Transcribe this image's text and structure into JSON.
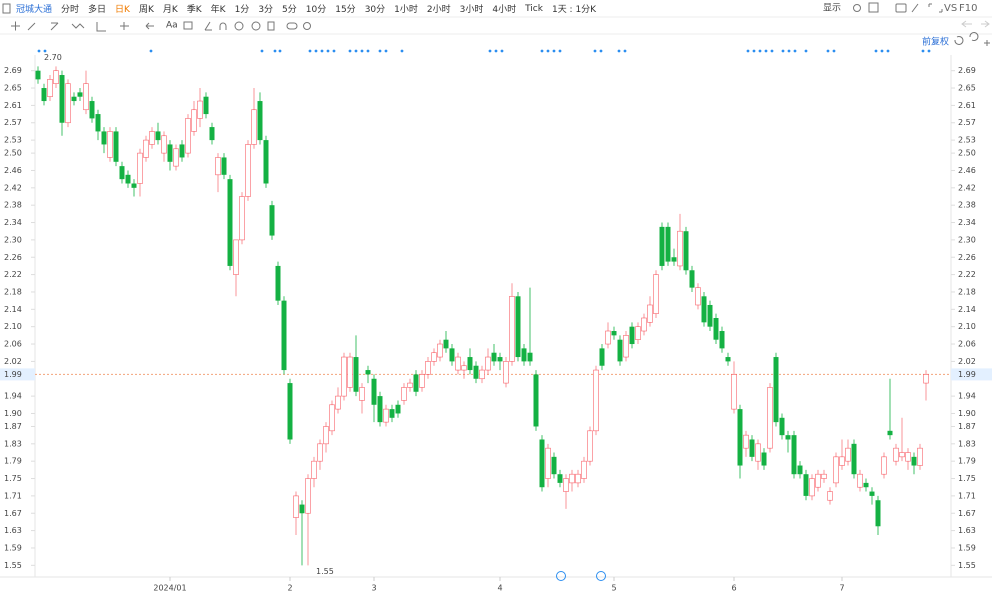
{
  "toolbar": {
    "stock": "冠城大通",
    "periods": [
      "分时",
      "多日",
      "日K",
      "周K",
      "月K",
      "季K",
      "年K",
      "1分",
      "3分",
      "5分",
      "10分",
      "15分",
      "30分",
      "1小时",
      "2小时",
      "3小时",
      "4小时",
      "Tick",
      "1天 : 1分K"
    ],
    "active": "日K",
    "display": "显示",
    "vs": "VS",
    "f10": "F10",
    "font": "Aa",
    "adjust": "前复权"
  },
  "chart_data": {
    "type": "candlestick",
    "up_color": "#f5222d",
    "down_color": "#14b143",
    "ylim": [
      1.53,
      2.71
    ],
    "yticks": [
      2.69,
      2.65,
      2.61,
      2.57,
      2.53,
      {
        "value": 2.5,
        "label": "2.50"
      },
      2.46,
      2.42,
      2.38,
      2.34,
      {
        "value": 2.3,
        "label": "2.30"
      },
      2.26,
      2.22,
      2.18,
      2.14,
      {
        "value": 2.1,
        "label": "2.10"
      },
      2.06,
      2.02,
      1.94,
      {
        "value": 1.9,
        "label": "1.90"
      },
      1.87,
      1.83,
      1.79,
      1.75,
      1.71,
      1.67,
      1.63,
      1.59,
      1.55
    ],
    "last_price": 1.99,
    "high_label": "2.70",
    "low_label": "1.55",
    "xticks": [
      {
        "value": 22,
        "label": "2024/01"
      },
      {
        "value": 42,
        "label": "2"
      },
      {
        "value": 56,
        "label": "3"
      },
      {
        "value": 77,
        "label": "4"
      },
      {
        "value": 96,
        "label": "5"
      },
      {
        "value": 116,
        "label": "6"
      },
      {
        "value": 134,
        "label": "7"
      }
    ],
    "ohlc": [
      [
        2.69,
        2.7,
        2.66,
        2.67
      ],
      [
        2.65,
        2.66,
        2.61,
        2.62
      ],
      [
        2.63,
        2.68,
        2.62,
        2.67
      ],
      [
        2.66,
        2.7,
        2.65,
        2.69
      ],
      [
        2.68,
        2.69,
        2.54,
        2.57
      ],
      [
        2.57,
        2.67,
        2.56,
        2.66
      ],
      [
        2.63,
        2.64,
        2.61,
        2.62
      ],
      [
        2.64,
        2.65,
        2.62,
        2.63
      ],
      [
        2.6,
        2.69,
        2.59,
        2.66
      ],
      [
        2.62,
        2.63,
        2.57,
        2.58
      ],
      [
        2.59,
        2.6,
        2.53,
        2.55
      ],
      [
        2.55,
        2.56,
        2.5,
        2.52
      ],
      [
        2.49,
        2.56,
        2.48,
        2.55
      ],
      [
        2.55,
        2.56,
        2.47,
        2.48
      ],
      [
        2.47,
        2.48,
        2.43,
        2.44
      ],
      [
        2.45,
        2.46,
        2.42,
        2.43
      ],
      [
        2.43,
        2.44,
        2.4,
        2.42
      ],
      [
        2.43,
        2.51,
        2.4,
        2.5
      ],
      [
        2.49,
        2.54,
        2.48,
        2.53
      ],
      [
        2.52,
        2.56,
        2.51,
        2.55
      ],
      [
        2.55,
        2.57,
        2.52,
        2.53
      ],
      [
        2.5,
        2.55,
        2.48,
        2.54
      ],
      [
        2.52,
        2.53,
        2.46,
        2.48
      ],
      [
        2.47,
        2.52,
        2.46,
        2.51
      ],
      [
        2.52,
        2.53,
        2.48,
        2.49
      ],
      [
        2.5,
        2.59,
        2.49,
        2.58
      ],
      [
        2.55,
        2.62,
        2.54,
        2.6
      ],
      [
        2.58,
        2.65,
        2.56,
        2.62
      ],
      [
        2.63,
        2.64,
        2.58,
        2.59
      ],
      [
        2.56,
        2.57,
        2.52,
        2.53
      ],
      [
        2.45,
        2.5,
        2.41,
        2.49
      ],
      [
        2.49,
        2.5,
        2.44,
        2.45
      ],
      [
        2.44,
        2.45,
        2.23,
        2.24
      ],
      [
        2.22,
        2.3,
        2.17,
        2.3
      ],
      [
        2.3,
        2.41,
        2.29,
        2.4
      ],
      [
        2.4,
        2.53,
        2.39,
        2.52
      ],
      [
        2.52,
        2.65,
        2.51,
        2.6
      ],
      [
        2.62,
        2.64,
        2.52,
        2.53
      ],
      [
        2.53,
        2.54,
        2.42,
        2.43
      ],
      [
        2.38,
        2.39,
        2.3,
        2.31
      ],
      [
        2.24,
        2.25,
        2.15,
        2.16
      ],
      [
        2.16,
        2.17,
        1.99,
        2
      ],
      [
        1.97,
        1.98,
        1.83,
        1.84
      ],
      [
        1.66,
        1.72,
        1.62,
        1.71
      ],
      [
        1.69,
        1.7,
        1.55,
        1.67
      ],
      [
        1.67,
        1.76,
        1.55,
        1.75
      ],
      [
        1.75,
        1.8,
        1.73,
        1.79
      ],
      [
        1.79,
        1.84,
        1.77,
        1.83
      ],
      [
        1.83,
        1.88,
        1.81,
        1.87
      ],
      [
        1.86,
        1.93,
        1.85,
        1.92
      ],
      [
        1.91,
        1.96,
        1.9,
        1.94
      ],
      [
        1.94,
        2.04,
        1.93,
        2.03
      ],
      [
        1.96,
        2.04,
        1.95,
        2.03
      ],
      [
        2.03,
        2.08,
        1.94,
        1.95
      ],
      [
        1.93,
        1.97,
        1.9,
        1.96
      ],
      [
        2,
        2.01,
        1.97,
        1.99
      ],
      [
        1.98,
        1.99,
        1.88,
        1.92
      ],
      [
        1.94,
        1.95,
        1.87,
        1.88
      ],
      [
        1.88,
        1.92,
        1.87,
        1.91
      ],
      [
        1.91,
        1.92,
        1.88,
        1.89
      ],
      [
        1.92,
        1.93,
        1.89,
        1.9
      ],
      [
        1.93,
        1.97,
        1.92,
        1.96
      ],
      [
        1.96,
        1.98,
        1.95,
        1.97
      ],
      [
        1.99,
        2,
        1.94,
        1.95
      ],
      [
        1.96,
        2,
        1.95,
        1.99
      ],
      [
        1.99,
        2.03,
        1.98,
        2.02
      ],
      [
        2.02,
        2.05,
        2.01,
        2.04
      ],
      [
        2.03,
        2.07,
        2.02,
        2.06
      ],
      [
        2.07,
        2.09,
        2.04,
        2.05
      ],
      [
        2.05,
        2.06,
        2.01,
        2.02
      ],
      [
        2,
        2.04,
        1.99,
        2.03
      ],
      [
        2,
        2.02,
        1.98,
        2.01
      ],
      [
        2.03,
        2.05,
        1.99,
        2
      ],
      [
        2.01,
        2.02,
        1.97,
        1.98
      ],
      [
        1.98,
        2.01,
        1.97,
        2
      ],
      [
        2,
        2.05,
        1.99,
        2.03
      ],
      [
        2.04,
        2.06,
        2.01,
        2.02
      ],
      [
        2.03,
        2.04,
        2,
        2.02
      ],
      [
        1.97,
        2.03,
        1.96,
        2.02
      ],
      [
        2.02,
        2.2,
        2.01,
        2.17
      ],
      [
        2.17,
        2.18,
        2.02,
        2.03
      ],
      [
        2.05,
        2.06,
        2.01,
        2.02
      ],
      [
        2.04,
        2.19,
        2.01,
        2.02
      ],
      [
        1.99,
        2,
        1.86,
        1.87
      ],
      [
        1.84,
        1.85,
        1.72,
        1.73
      ],
      [
        1.75,
        1.83,
        1.73,
        1.82
      ],
      [
        1.8,
        1.81,
        1.75,
        1.76
      ],
      [
        1.76,
        1.77,
        1.73,
        1.74
      ],
      [
        1.72,
        1.76,
        1.68,
        1.75
      ],
      [
        1.74,
        1.77,
        1.72,
        1.76
      ],
      [
        1.74,
        1.77,
        1.73,
        1.76
      ],
      [
        1.75,
        1.8,
        1.74,
        1.79
      ],
      [
        1.79,
        1.87,
        1.78,
        1.86
      ],
      [
        1.86,
        2.01,
        1.85,
        2
      ],
      [
        2.05,
        2.06,
        2,
        2.01
      ],
      [
        2.06,
        2.11,
        2.05,
        2.09
      ],
      [
        2.09,
        2.1,
        2.07,
        2.08
      ],
      [
        2.07,
        2.08,
        2.01,
        2.02
      ],
      [
        2.03,
        2.09,
        2.02,
        2.08
      ],
      [
        2.1,
        2.11,
        2.05,
        2.06
      ],
      [
        2.07,
        2.11,
        2.06,
        2.1
      ],
      [
        2.09,
        2.13,
        2.08,
        2.12
      ],
      [
        2.11,
        2.17,
        2.1,
        2.15
      ],
      [
        2.13,
        2.23,
        2.12,
        2.22
      ],
      [
        2.33,
        2.34,
        2.23,
        2.24
      ],
      [
        2.33,
        2.34,
        2.24,
        2.25
      ],
      [
        2.26,
        2.28,
        2.24,
        2.25
      ],
      [
        2.24,
        2.36,
        2.23,
        2.32
      ],
      [
        2.32,
        2.33,
        2.22,
        2.23
      ],
      [
        2.23,
        2.24,
        2.18,
        2.19
      ],
      [
        2.15,
        2.2,
        2.14,
        2.19
      ],
      [
        2.17,
        2.18,
        2.1,
        2.11
      ],
      [
        2.15,
        2.16,
        2.09,
        2.1
      ],
      [
        2.12,
        2.13,
        2.06,
        2.07
      ],
      [
        2.09,
        2.1,
        2.04,
        2.05
      ],
      [
        2.03,
        2.04,
        2.01,
        2.02
      ],
      [
        1.91,
        2.02,
        1.9,
        1.99
      ],
      [
        1.91,
        1.92,
        1.75,
        1.78
      ],
      [
        1.82,
        1.86,
        1.8,
        1.85
      ],
      [
        1.84,
        1.85,
        1.79,
        1.8
      ],
      [
        1.79,
        1.84,
        1.77,
        1.83
      ],
      [
        1.81,
        1.82,
        1.77,
        1.78
      ],
      [
        1.82,
        1.97,
        1.81,
        1.96
      ],
      [
        2.03,
        2.04,
        1.87,
        1.88
      ],
      [
        1.89,
        1.9,
        1.84,
        1.85
      ],
      [
        1.85,
        1.86,
        1.81,
        1.84
      ],
      [
        1.85,
        1.86,
        1.75,
        1.76
      ],
      [
        1.78,
        1.79,
        1.75,
        1.76
      ],
      [
        1.76,
        1.77,
        1.7,
        1.71
      ],
      [
        1.71,
        1.76,
        1.7,
        1.75
      ],
      [
        1.73,
        1.77,
        1.72,
        1.76
      ],
      [
        1.75,
        1.77,
        1.74,
        1.76
      ],
      [
        1.7,
        1.73,
        1.69,
        1.72
      ],
      [
        1.74,
        1.81,
        1.73,
        1.8
      ],
      [
        1.78,
        1.84,
        1.77,
        1.8
      ],
      [
        1.79,
        1.84,
        1.78,
        1.82
      ],
      [
        1.83,
        1.84,
        1.75,
        1.76
      ],
      [
        1.73,
        1.77,
        1.72,
        1.76
      ],
      [
        1.74,
        1.75,
        1.72,
        1.73
      ],
      [
        1.72,
        1.73,
        1.69,
        1.71
      ],
      [
        1.7,
        1.71,
        1.62,
        1.64
      ],
      [
        1.76,
        1.81,
        1.75,
        1.8
      ],
      [
        1.86,
        1.98,
        1.84,
        1.85
      ],
      [
        1.79,
        1.83,
        1.78,
        1.82
      ],
      [
        1.8,
        1.89,
        1.79,
        1.81
      ],
      [
        1.79,
        1.82,
        1.77,
        1.81
      ],
      [
        1.8,
        1.81,
        1.76,
        1.78
      ],
      [
        1.78,
        1.83,
        1.77,
        1.82
      ],
      [
        1.97,
        2,
        1.93,
        1.99
      ]
    ]
  }
}
